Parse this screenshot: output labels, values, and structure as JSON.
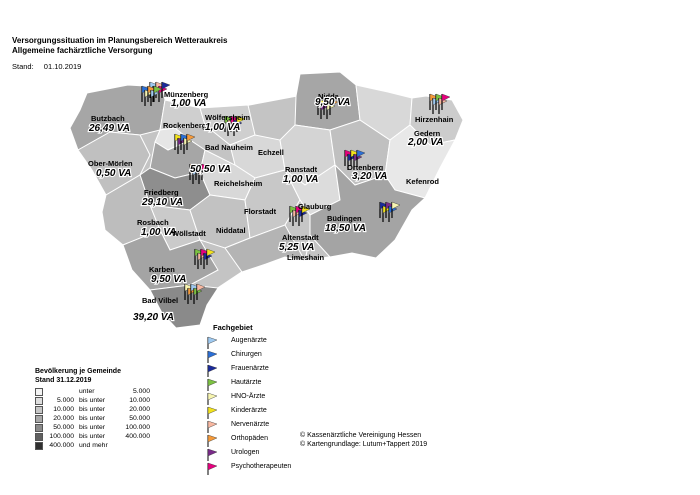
{
  "header": {
    "title_line1": "Versorgungssituation im Planungsbereich Wetteraukreis",
    "title_line2": "Allgemeine fachärztliche Versorgung",
    "stand_label": "Stand:",
    "stand_date": "01.10.2019"
  },
  "map": {
    "municipalities": [
      {
        "name": "Münzenberg",
        "va": "1,00 VA"
      },
      {
        "name": "Butzbach",
        "va": "26,49 VA"
      },
      {
        "name": "Rockenberg",
        "va": ""
      },
      {
        "name": "Wölfersheim",
        "va": "1,00 VA"
      },
      {
        "name": "Ober-Mörlen",
        "va": "0,50 VA"
      },
      {
        "name": "Bad Nauheim",
        "va": "50,50 VA"
      },
      {
        "name": "Echzell",
        "va": ""
      },
      {
        "name": "Friedberg",
        "va": "29,10 VA"
      },
      {
        "name": "Reichelsheim",
        "va": ""
      },
      {
        "name": "Rosbach",
        "va": "1,00 VA"
      },
      {
        "name": "Wöllstadt",
        "va": ""
      },
      {
        "name": "Florstadt",
        "va": ""
      },
      {
        "name": "Niddatal",
        "va": ""
      },
      {
        "name": "Karben",
        "va": "9,50 VA"
      },
      {
        "name": "Bad Vilbel",
        "va": "39,20 VA"
      },
      {
        "name": "Nidda",
        "va": "9,50 VA"
      },
      {
        "name": "Hirzenhain",
        "va": ""
      },
      {
        "name": "Gedern",
        "va": "2,00 VA"
      },
      {
        "name": "Ranstadt",
        "va": "1,00 VA"
      },
      {
        "name": "Ortenberg",
        "va": "3,20 VA"
      },
      {
        "name": "Kefenrod",
        "va": ""
      },
      {
        "name": "Glauburg",
        "va": ""
      },
      {
        "name": "Büdingen",
        "va": "18,50 VA"
      },
      {
        "name": "Altenstadt",
        "va": "5,25 VA"
      },
      {
        "name": "Limeshain",
        "va": ""
      }
    ]
  },
  "fachgebiet": {
    "title": "Fachgebiet",
    "items": [
      {
        "label": "Augenärzte",
        "color": "#9ec9f0"
      },
      {
        "label": "Chirurgen",
        "color": "#2b6fd6"
      },
      {
        "label": "Frauenärzte",
        "color": "#1a2a9a"
      },
      {
        "label": "Hautärzte",
        "color": "#7cc242"
      },
      {
        "label": "HNO-Ärzte",
        "color": "#f7f5b0"
      },
      {
        "label": "Kinderärzte",
        "color": "#f2e21b"
      },
      {
        "label": "Nervenärzte",
        "color": "#f7b7a0"
      },
      {
        "label": "Orthopäden",
        "color": "#f59a3a"
      },
      {
        "label": "Urologen",
        "color": "#7a2a8a"
      },
      {
        "label": "Psychotherapeuten",
        "color": "#e6007e"
      }
    ]
  },
  "bevoelkerung": {
    "title_line1": "Bevölkerung je Gemeinde",
    "title_line2": "Stand 31.12.2019",
    "rows": [
      {
        "from": "",
        "sep": "unter",
        "to": "5.000",
        "color": "#f4f4f4"
      },
      {
        "from": "5.000",
        "sep": "bis unter",
        "to": "10.000",
        "color": "#dedede"
      },
      {
        "from": "10.000",
        "sep": "bis unter",
        "to": "20.000",
        "color": "#c6c6c6"
      },
      {
        "from": "20.000",
        "sep": "bis unter",
        "to": "50.000",
        "color": "#a8a8a8"
      },
      {
        "from": "50.000",
        "sep": "bis unter",
        "to": "100.000",
        "color": "#8a8a8a"
      },
      {
        "from": "100.000",
        "sep": "bis unter",
        "to": "400.000",
        "color": "#606060"
      },
      {
        "from": "400.000",
        "sep": "und mehr",
        "to": "",
        "color": "#303030"
      }
    ]
  },
  "copyright": {
    "line1": "© Kassenärztliche Vereinigung Hessen",
    "line2": "© Kartengrundlage: Lutum+Tappert 2019"
  }
}
